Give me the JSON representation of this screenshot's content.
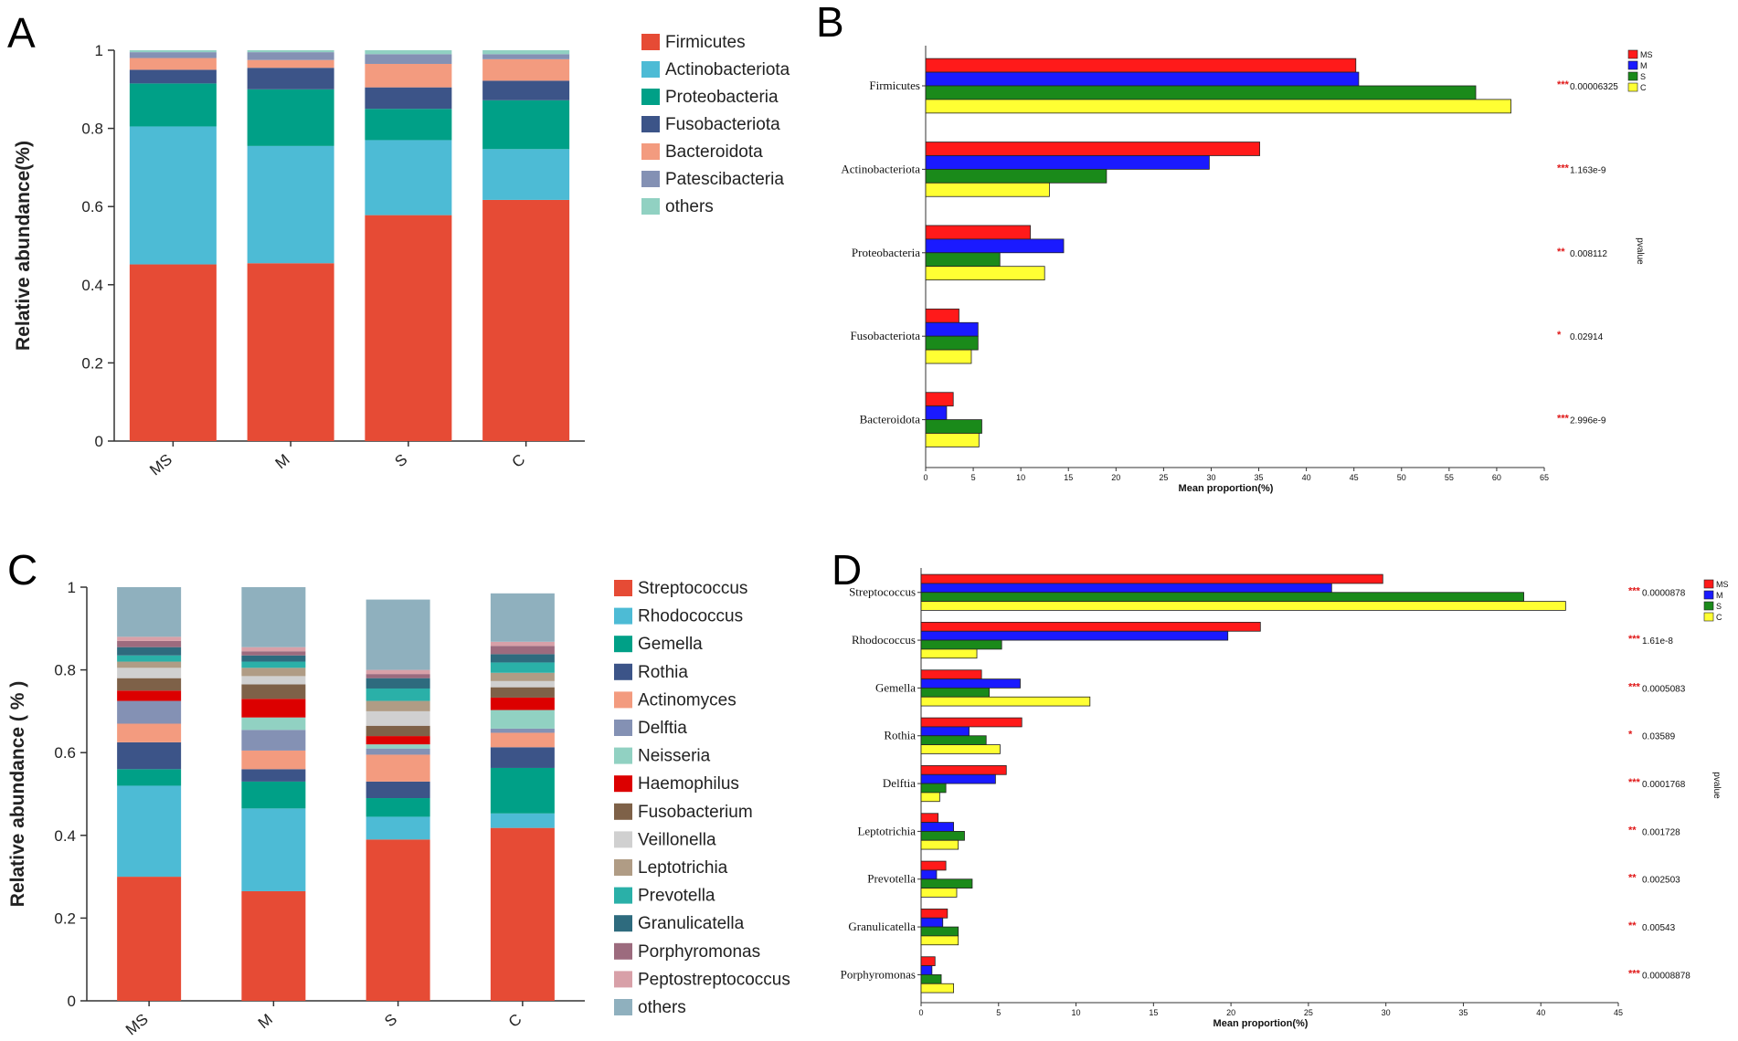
{
  "chart_data": [
    {
      "panel": "A",
      "type": "stacked-bar",
      "title": "",
      "xlabel": "",
      "ylabel": "Relative abundance(%)",
      "ylim": [
        0,
        1
      ],
      "yticks": [
        "0",
        "0.2",
        "0.4",
        "0.6",
        "0.8",
        "1"
      ],
      "categories": [
        "MS",
        "M",
        "S",
        "C"
      ],
      "series": [
        {
          "name": "Firmicutes",
          "color": "#e64b35",
          "values": [
            0.452,
            0.455,
            0.578,
            0.617
          ]
        },
        {
          "name": "Actinobacteriota",
          "color": "#4dbbd5",
          "values": [
            0.353,
            0.3,
            0.192,
            0.13
          ]
        },
        {
          "name": "Proteobacteria",
          "color": "#00a087",
          "values": [
            0.11,
            0.145,
            0.08,
            0.125
          ]
        },
        {
          "name": "Fusobacteriota",
          "color": "#3c5488",
          "values": [
            0.035,
            0.055,
            0.055,
            0.05
          ]
        },
        {
          "name": "Bacteroidota",
          "color": "#f39b7f",
          "values": [
            0.03,
            0.02,
            0.06,
            0.055
          ]
        },
        {
          "name": "Patescibacteria",
          "color": "#8491b4",
          "values": [
            0.015,
            0.02,
            0.025,
            0.013
          ]
        },
        {
          "name": "others",
          "color": "#91d1c2",
          "values": [
            0.005,
            0.005,
            0.01,
            0.01
          ]
        }
      ],
      "legend_position": "right"
    },
    {
      "panel": "B",
      "type": "grouped-hbar",
      "xlabel": "Mean proportion(%)",
      "xlim": [
        0,
        65
      ],
      "xticks": [
        "0",
        "5",
        "10",
        "15",
        "20",
        "25",
        "30",
        "35",
        "40",
        "45",
        "50",
        "55",
        "60",
        "65"
      ],
      "groups": [
        "MS",
        "M",
        "S",
        "C"
      ],
      "group_colors": [
        "#ff1a1a",
        "#1a1aff",
        "#1a8a1a",
        "#ffff33"
      ],
      "categories": [
        "Firmicutes",
        "Actinobacteriota",
        "Proteobacteria",
        "Fusobacteriota",
        "Bacteroidota"
      ],
      "values": [
        [
          45.2,
          45.5,
          57.8,
          61.5
        ],
        [
          35.1,
          29.8,
          19.0,
          13.0
        ],
        [
          11.0,
          14.5,
          7.8,
          12.5
        ],
        [
          3.5,
          5.5,
          5.5,
          4.8
        ],
        [
          2.9,
          2.2,
          5.9,
          5.6
        ]
      ],
      "significance": [
        "***",
        "***",
        "**",
        "*",
        "***"
      ],
      "pvalues": [
        "0.00006325",
        "1.163e-9",
        "0.008112",
        "0.02914",
        "2.996e-9"
      ],
      "pvalue_label": "pvalue"
    },
    {
      "panel": "C",
      "type": "stacked-bar",
      "title": "",
      "xlabel": "",
      "ylabel": "Relative abundance ( % )",
      "ylim": [
        0,
        1
      ],
      "yticks": [
        "0",
        "0.2",
        "0.4",
        "0.6",
        "0.8",
        "1"
      ],
      "categories": [
        "MS",
        "M",
        "S",
        "C"
      ],
      "series": [
        {
          "name": "Streptococcus",
          "color": "#e64b35",
          "values": [
            0.3,
            0.265,
            0.39,
            0.418
          ]
        },
        {
          "name": "Rhodococcus",
          "color": "#4dbbd5",
          "values": [
            0.22,
            0.2,
            0.055,
            0.035
          ]
        },
        {
          "name": "Gemella",
          "color": "#00a087",
          "values": [
            0.04,
            0.065,
            0.045,
            0.11
          ]
        },
        {
          "name": "Rothia",
          "color": "#3c5488",
          "values": [
            0.065,
            0.03,
            0.04,
            0.05
          ]
        },
        {
          "name": "Actinomyces",
          "color": "#f39b7f",
          "values": [
            0.045,
            0.045,
            0.065,
            0.035
          ]
        },
        {
          "name": "Delftia",
          "color": "#8491b4",
          "values": [
            0.055,
            0.05,
            0.015,
            0.01
          ]
        },
        {
          "name": "Neisseria",
          "color": "#91d1c2",
          "values": [
            0.0,
            0.03,
            0.01,
            0.045
          ]
        },
        {
          "name": "Haemophilus",
          "color": "#dc0000",
          "values": [
            0.025,
            0.045,
            0.02,
            0.03
          ]
        },
        {
          "name": "Fusobacterium",
          "color": "#7e6148",
          "values": [
            0.03,
            0.035,
            0.025,
            0.025
          ]
        },
        {
          "name": "Veillonella",
          "color": "#d0d0d0",
          "values": [
            0.025,
            0.02,
            0.035,
            0.015
          ]
        },
        {
          "name": "Leptotrichia",
          "color": "#b09c85",
          "values": [
            0.015,
            0.02,
            0.025,
            0.02
          ]
        },
        {
          "name": "Prevotella",
          "color": "#2ab0a8",
          "values": [
            0.015,
            0.015,
            0.03,
            0.025
          ]
        },
        {
          "name": "Granulicatella",
          "color": "#2e6b7e",
          "values": [
            0.02,
            0.015,
            0.025,
            0.02
          ]
        },
        {
          "name": "Porphyromonas",
          "color": "#9c6b7e",
          "values": [
            0.015,
            0.01,
            0.01,
            0.02
          ]
        },
        {
          "name": "Peptostreptococcus",
          "color": "#d8a0a8",
          "values": [
            0.01,
            0.01,
            0.01,
            0.01
          ]
        },
        {
          "name": "others",
          "color": "#8fb0be",
          "values": [
            0.12,
            0.145,
            0.17,
            0.117
          ]
        }
      ],
      "legend_position": "right"
    },
    {
      "panel": "D",
      "type": "grouped-hbar",
      "xlabel": "Mean proportion(%)",
      "xlim": [
        0,
        45
      ],
      "xticks": [
        "0",
        "5",
        "10",
        "15",
        "20",
        "25",
        "30",
        "35",
        "40",
        "45"
      ],
      "groups": [
        "MS",
        "M",
        "S",
        "C"
      ],
      "group_colors": [
        "#ff1a1a",
        "#1a1aff",
        "#1a8a1a",
        "#ffff33"
      ],
      "categories": [
        "Streptococcus",
        "Rhodococcus",
        "Gemella",
        "Rothia",
        "Delftia",
        "Leptotrichia",
        "Prevotella",
        "Granulicatella",
        "Porphyromonas"
      ],
      "values": [
        [
          29.8,
          26.5,
          38.9,
          41.6
        ],
        [
          21.9,
          19.8,
          5.2,
          3.6
        ],
        [
          3.9,
          6.4,
          4.4,
          10.9
        ],
        [
          6.5,
          3.1,
          4.2,
          5.1
        ],
        [
          5.5,
          4.8,
          1.6,
          1.2
        ],
        [
          1.1,
          2.1,
          2.8,
          2.4
        ],
        [
          1.6,
          1.0,
          3.3,
          2.3
        ],
        [
          1.7,
          1.4,
          2.4,
          2.4
        ],
        [
          0.9,
          0.7,
          1.3,
          2.1
        ]
      ],
      "significance": [
        "***",
        "***",
        "***",
        "*",
        "***",
        "**",
        "**",
        "**",
        "***"
      ],
      "pvalues": [
        "0.0000878",
        "1.61e-8",
        "0.0005083",
        "0.03589",
        "0.0001768",
        "0.001728",
        "0.002503",
        "0.00543",
        "0.00008878"
      ],
      "pvalue_label": "pvalue"
    }
  ]
}
